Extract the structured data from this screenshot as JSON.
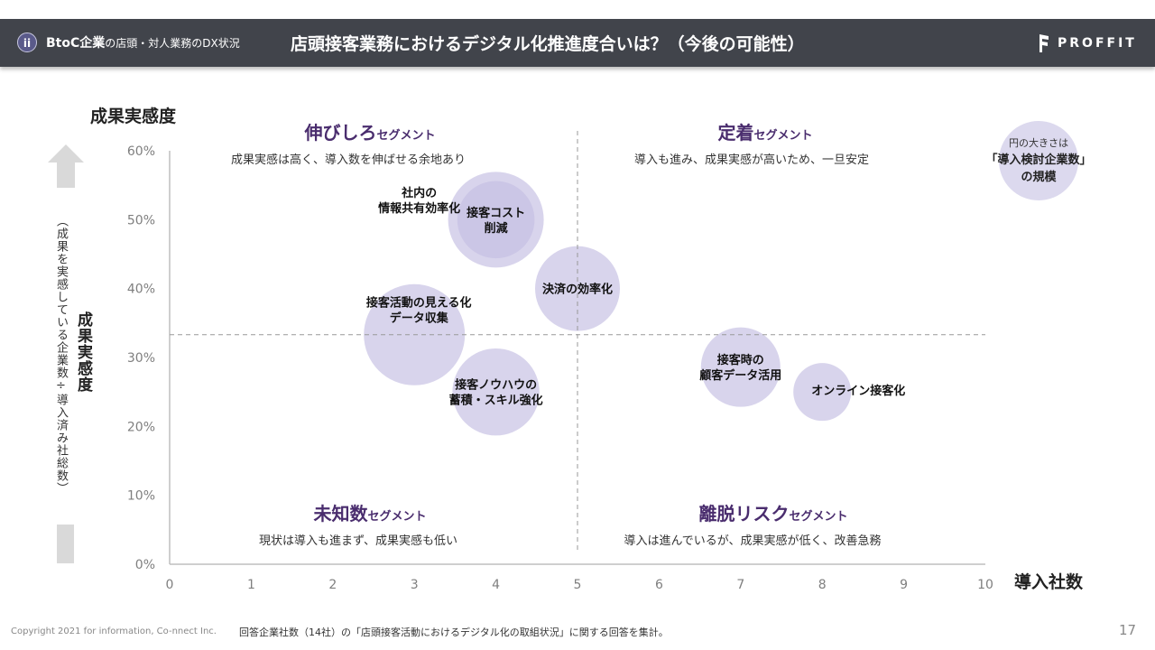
{
  "header": {
    "badge": "ii",
    "section_bold": "BtoC企業",
    "section_rest": "の店頭・対人業務のDX状況",
    "title": "店頭接客業務におけるデジタル化推進度合いは？（今後の可能性）",
    "logo": "PROFFIT"
  },
  "axis_side": {
    "top_label": "成果実感度",
    "sub_label": "（成果を実感している企業数÷導入済み社総数）",
    "main_label": "成果実感度"
  },
  "segments": [
    {
      "title": "伸びしろ",
      "suffix": "セグメント",
      "desc": "成果実感は高く、導入数を伸ばせる余地あり"
    },
    {
      "title": "定着",
      "suffix": "セグメント",
      "desc": "導入も進み、成果実感が高いため、一旦安定"
    },
    {
      "title": "未知数",
      "suffix": "セグメント",
      "desc": "現状は導入も進まず、成果実感も低い"
    },
    {
      "title": "離脱リスク",
      "suffix": "セグメント",
      "desc": "導入は進んでいるが、成果実感が低く、改善急務"
    }
  ],
  "legend": {
    "line1": "円の大きさは",
    "line2": "「導入検討企業数」",
    "line3": "の規模"
  },
  "colors": {
    "header_bg": "#41444b",
    "bubble": "#d8d4ec",
    "bubble_dark": "#cbc6e6",
    "segment_title": "#4a2d6e",
    "axis": "#bfbfbf",
    "tick": "#7f7f7f"
  },
  "chart_data": {
    "type": "scatter",
    "subtype": "bubble",
    "xlabel": "導入社数",
    "ylabel": "成果実感度",
    "xlim": [
      0,
      10
    ],
    "ylim": [
      0,
      60
    ],
    "x_ticks": [
      "0",
      "1",
      "2",
      "3",
      "4",
      "5",
      "6",
      "7",
      "8",
      "9",
      "10"
    ],
    "y_ticks": [
      "0%",
      "10%",
      "20%",
      "30%",
      "40%",
      "50%",
      "60%"
    ],
    "grid": false,
    "thresholds": {
      "x": 5,
      "y": 33.3
    },
    "size_meaning": "導入検討企業数",
    "points": [
      {
        "label": [
          "社内の",
          "情報共有効率化"
        ],
        "x": 4,
        "y": 50,
        "size": 5.5,
        "label_pos": "left"
      },
      {
        "label": [
          "接客コスト",
          "削減"
        ],
        "x": 4,
        "y": 50,
        "size": 3.8,
        "label_pos": "center",
        "dark": true
      },
      {
        "label": [
          "決済の効率化"
        ],
        "x": 5,
        "y": 40,
        "size": 4.5,
        "label_pos": "center"
      },
      {
        "label": [
          "接客活動の見える化",
          "データ収集"
        ],
        "x": 3,
        "y": 33.3,
        "size": 6,
        "label_pos": "upper"
      },
      {
        "label": [
          "接客ノウハウの",
          "蓄積・スキル強化"
        ],
        "x": 4,
        "y": 25,
        "size": 4.7,
        "label_pos": "center"
      },
      {
        "label": [
          "接客時の",
          "顧客データ活用"
        ],
        "x": 7,
        "y": 28.6,
        "size": 4,
        "label_pos": "center"
      },
      {
        "label": [
          "オンライン接客化"
        ],
        "x": 8,
        "y": 25,
        "size": 2,
        "label_pos": "right"
      }
    ]
  },
  "footer": {
    "copyright": "Copyright 2021 for information, Co-nnect Inc.",
    "note": "回答企業社数（14社）の「店頭接客活動におけるデジタル化の取組状況」に関する回答を集計。",
    "page": "17"
  }
}
